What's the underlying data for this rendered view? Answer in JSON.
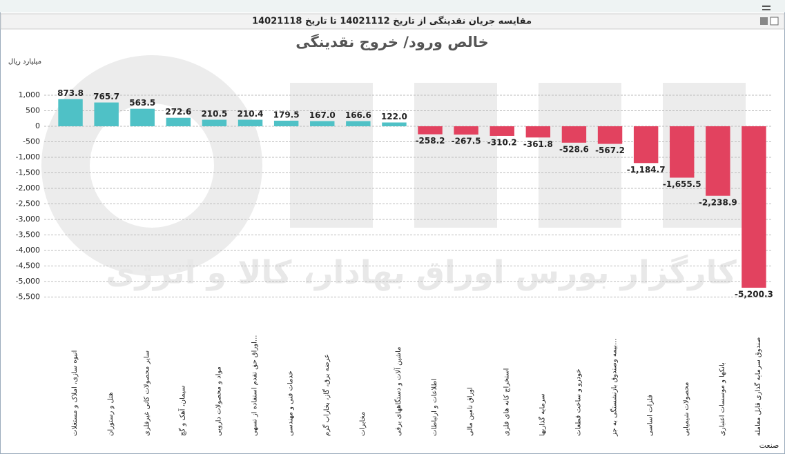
{
  "window": {
    "title": "مقایسه جریان نقدینگی از تاریخ 14021112 تا تاریخ 14021118"
  },
  "chart_data": {
    "type": "bar",
    "title": "خالص ورود/ خروج نقدینگی",
    "y_label": "میلیارد ریال",
    "x_label": "صنعت",
    "watermark": "کارگزار بورس اوراق بهادار، کالا و انرژی",
    "categories": [
      "انبوه سازی، املاک و مستغلات",
      "هتل و رستوران",
      "سایر محصولات کانی غیرفلزی",
      "سیمان، آهک و گچ",
      "مواد و محصولات دارویی",
      "اوراق حق تقدم استفاده از تسهی...",
      "خدمات فنی و مهندسی",
      "عرضه برق، گاز، بخاراب گرم",
      "مخابرات",
      "ماشین آلات و دستگاههای برقی",
      "اطلاعات و ارتباطات",
      "اوراق تامین مالی",
      "استخراج کانه های فلزی",
      "سرمایه گذاریها",
      "خودرو و ساخت قطعات",
      "بیمه وصندوق بازنشستگی به جز...",
      "فلزات اساسی",
      "محصولات شیمیایی",
      "بانکها و موسسات اعتباری",
      "صندوق سرمایه گذاری قابل معامله"
    ],
    "values": [
      873.8,
      765.7,
      563.5,
      272.6,
      210.5,
      210.4,
      179.5,
      167.0,
      166.6,
      122.0,
      -258.2,
      -267.5,
      -310.2,
      -361.8,
      -528.6,
      -567.2,
      -1184.7,
      -1655.5,
      -2238.9,
      -5200.3
    ],
    "value_labels": [
      "873.8",
      "765.7",
      "563.5",
      "272.6",
      "210.5",
      "210.4",
      "179.5",
      "167.0",
      "166.6",
      "122.0",
      "-258.2",
      "-267.5",
      "-310.2",
      "-361.8",
      "-528.6",
      "-567.2",
      "-1,184.7",
      "-1,655.5",
      "-2,238.9",
      "-5,200.3"
    ],
    "positive_color": "#4fc1c6",
    "negative_color": "#e2425f",
    "ylim": [
      -5800,
      1500
    ],
    "yticks": [
      {
        "value": 1000,
        "label": "1,000"
      },
      500,
      0,
      -500,
      {
        "value": -1000,
        "label": "-1,000"
      },
      {
        "value": -1500,
        "label": "-1,500"
      },
      {
        "value": -2000,
        "label": "-2,000"
      },
      {
        "value": -2500,
        "label": "-2,500"
      },
      {
        "value": -3000,
        "label": "-3,000"
      },
      {
        "value": -3500,
        "label": "-3,500"
      },
      {
        "value": -4000,
        "label": "-4,000"
      },
      {
        "value": -4500,
        "label": "-4,500"
      },
      {
        "value": -5000,
        "label": "-5,000"
      },
      {
        "value": -5500,
        "label": "-5,500"
      }
    ],
    "grid": true
  }
}
